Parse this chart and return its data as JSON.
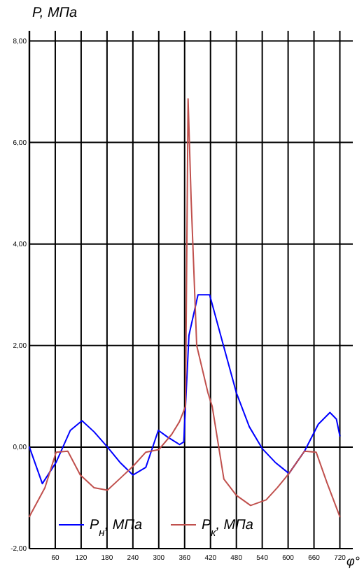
{
  "chart_data": {
    "type": "line",
    "ylabel": "P, МПа",
    "xlabel": "φ°",
    "xlim": [
      0,
      750
    ],
    "ylim": [
      -2,
      8.2
    ],
    "xticks": [
      60,
      120,
      180,
      240,
      300,
      360,
      420,
      480,
      540,
      600,
      660,
      720
    ],
    "yticks": [
      {
        "value": -2,
        "label": "-2,00"
      },
      {
        "value": 0,
        "label": "0,00"
      },
      {
        "value": 2,
        "label": "2,00"
      },
      {
        "value": 4,
        "label": "4,00"
      },
      {
        "value": 6,
        "label": "6,00"
      },
      {
        "value": 8,
        "label": "8,00"
      }
    ],
    "grid": true,
    "legend": "bottom",
    "marker": "none",
    "line_style": "solid",
    "series": [
      {
        "name": "P$_{н}$, МПа",
        "color": "#0000ff",
        "x": [
          0,
          30,
          62,
          95,
          122,
          150,
          181,
          210,
          240,
          270,
          299,
          320,
          348,
          358,
          370,
          391,
          418,
          450,
          480,
          510,
          540,
          570,
          602,
          638,
          670,
          697,
          712,
          720
        ],
        "values": [
          0,
          -0.72,
          -0.3,
          0.33,
          0.52,
          0.3,
          0,
          -0.3,
          -0.55,
          -0.4,
          0.33,
          0.2,
          0.05,
          0.1,
          2.2,
          3.0,
          3.0,
          2.0,
          1.07,
          0.4,
          -0.03,
          -0.3,
          -0.52,
          -0.08,
          0.45,
          0.68,
          0.55,
          0.22
        ]
      },
      {
        "name": "P$_{к}$, МПа",
        "color": "#c0504d",
        "x": [
          0,
          36,
          62,
          89,
          118,
          150,
          181,
          210,
          240,
          270,
          300,
          330,
          348,
          362,
          368,
          375,
          388,
          414,
          424,
          451,
          480,
          513,
          549,
          575,
          602,
          638,
          665,
          690,
          720
        ],
        "values": [
          -1.37,
          -0.8,
          -0.1,
          -0.08,
          -0.55,
          -0.8,
          -0.85,
          -0.62,
          -0.38,
          -0.1,
          -0.05,
          0.25,
          0.5,
          0.8,
          6.86,
          4.9,
          2.0,
          1.07,
          0.8,
          -0.63,
          -0.95,
          -1.15,
          -1.04,
          -0.8,
          -0.52,
          -0.08,
          -0.1,
          -0.7,
          -1.37
        ]
      }
    ]
  }
}
